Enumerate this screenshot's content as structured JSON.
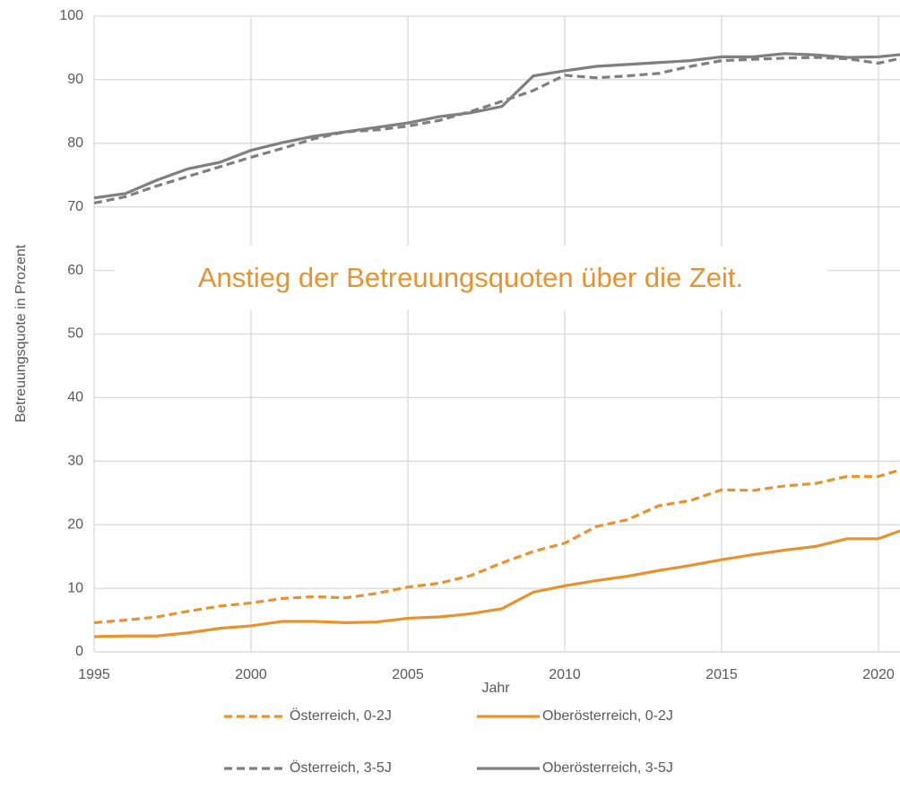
{
  "chart_data": {
    "type": "line",
    "x": [
      1995,
      1996,
      1997,
      1998,
      1999,
      2000,
      2001,
      2002,
      2003,
      2004,
      2005,
      2006,
      2007,
      2008,
      2009,
      2010,
      2011,
      2012,
      2013,
      2014,
      2015,
      2016,
      2017,
      2018,
      2019,
      2020,
      2021
    ],
    "series": [
      {
        "name": "Österreich, 0-2J",
        "color": "#e8922e",
        "dash": true,
        "values": [
          4.6,
          5.0,
          5.5,
          6.4,
          7.2,
          7.7,
          8.4,
          8.7,
          8.5,
          9.2,
          10.2,
          10.8,
          12.0,
          14.0,
          15.8,
          17.1,
          19.7,
          20.8,
          23.0,
          23.8,
          25.5,
          25.4,
          26.1,
          26.5,
          27.6,
          27.6,
          29.1
        ]
      },
      {
        "name": "Oberösterreich, 0-2J",
        "color": "#e8922e",
        "dash": false,
        "values": [
          2.4,
          2.5,
          2.5,
          3.0,
          3.7,
          4.1,
          4.8,
          4.8,
          4.6,
          4.7,
          5.3,
          5.5,
          6.0,
          6.8,
          9.4,
          10.4,
          11.2,
          11.9,
          12.8,
          13.6,
          14.5,
          15.3,
          16.0,
          16.6,
          17.8,
          17.8,
          19.6
        ]
      },
      {
        "name": "Österreich, 3-5J",
        "color": "#7f7f7f",
        "dash": true,
        "values": [
          70.6,
          71.6,
          73.3,
          74.8,
          76.3,
          77.8,
          79.2,
          80.7,
          81.8,
          82.1,
          82.7,
          83.6,
          85.0,
          86.6,
          88.3,
          90.7,
          90.3,
          90.6,
          91.0,
          92.1,
          93.0,
          93.2,
          93.4,
          93.5,
          93.3,
          92.6,
          93.7
        ]
      },
      {
        "name": "Oberösterreich, 3-5J",
        "color": "#7f7f7f",
        "dash": false,
        "values": [
          71.4,
          72.1,
          74.2,
          76.0,
          77.0,
          78.9,
          80.1,
          81.1,
          81.8,
          82.5,
          83.2,
          84.2,
          84.8,
          85.8,
          90.6,
          91.4,
          92.1,
          92.4,
          92.7,
          93.0,
          93.6,
          93.6,
          94.1,
          93.9,
          93.5,
          93.6,
          94.1
        ]
      }
    ],
    "xlim": [
      1995,
      2020.7
    ],
    "xticks": [
      1995,
      2000,
      2005,
      2010,
      2015,
      2020
    ],
    "ylim": [
      0,
      100
    ],
    "yticks": [
      0,
      10,
      20,
      30,
      40,
      50,
      60,
      70,
      80,
      90,
      100
    ],
    "grid": true,
    "xlabel": "Jahr",
    "ylabel": "Betreuungsquote in Prozent",
    "annotation": "Anstieg der Betreuungsquoten über die Zeit.",
    "annotation_color": "#e8922e",
    "legend": "bottom"
  }
}
